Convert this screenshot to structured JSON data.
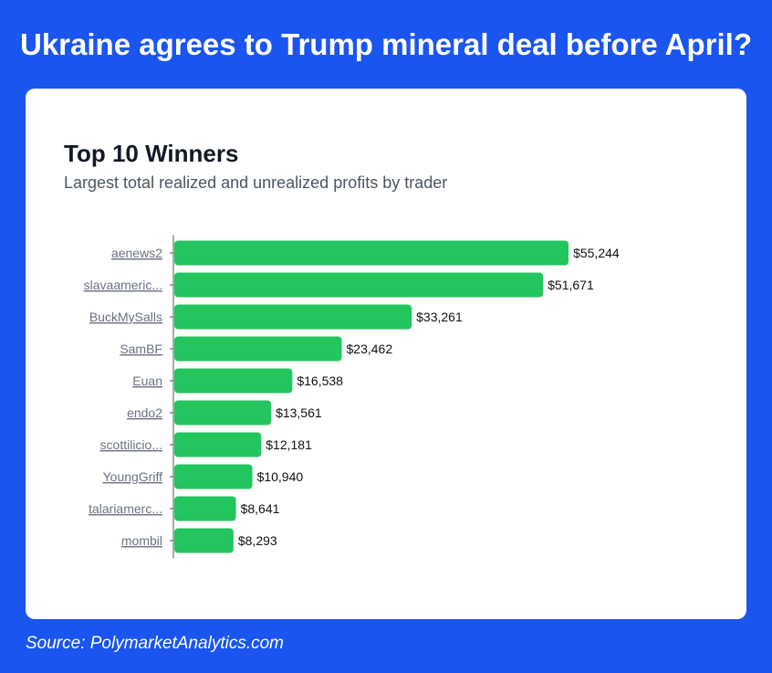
{
  "page": {
    "headline": "Ukraine agrees to Trump mineral deal before April?",
    "source": "Source: PolymarketAnalytics.com"
  },
  "colors": {
    "background": "#1a55f0",
    "card": "#ffffff",
    "bar": "#22c55e",
    "axis": "#555555"
  },
  "chart_data": {
    "type": "bar",
    "orientation": "horizontal",
    "title": "Top 10 Winners",
    "subtitle": "Largest total realized and unrealized profits by trader",
    "xlabel": "",
    "ylabel": "",
    "grid": false,
    "xlim": [
      0,
      56000
    ],
    "categories": [
      "aenews2",
      "slavaameric...",
      "BuckMySalls",
      "SamBF",
      "Euan",
      "endo2",
      "scottilicio...",
      "YoungGriff",
      "talariamerc...",
      "mombil"
    ],
    "values": [
      55244,
      51671,
      33261,
      23462,
      16538,
      13561,
      12181,
      10940,
      8641,
      8293
    ],
    "value_labels": [
      "$55,244",
      "$51,671",
      "$33,261",
      "$23,462",
      "$16,538",
      "$13,561",
      "$12,181",
      "$10,940",
      "$8,641",
      "$8,293"
    ]
  }
}
